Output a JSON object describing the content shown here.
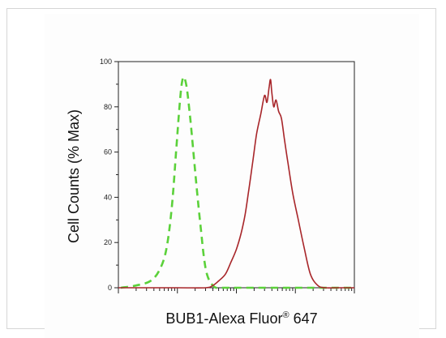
{
  "chart_data": {
    "type": "line",
    "title": "",
    "xlabel": "BUB1-Alexa Fluor",
    "xlabel_superscript": "®",
    "xlabel_suffix": " 647",
    "ylabel": "Cell Counts (% Max)",
    "x_scale": "log",
    "xlim": [
      1,
      10000
    ],
    "ylim": [
      0,
      100
    ],
    "y_ticks": [
      0,
      20,
      40,
      60,
      80,
      100
    ],
    "grid": false,
    "legend": "none",
    "series": [
      {
        "style": "dashed",
        "color": "#5bd13a",
        "x": [
          1.1,
          2,
          3.5,
          5,
          6.5,
          8,
          9.5,
          11,
          12,
          13,
          14.5,
          16.5,
          19,
          22,
          25,
          28,
          31,
          35,
          40,
          45,
          60,
          100,
          200,
          500,
          1000,
          2000,
          5000,
          10000
        ],
        "y": [
          0,
          1,
          3,
          8,
          17,
          35,
          60,
          82,
          91,
          93,
          88,
          75,
          58,
          40,
          26,
          14,
          7,
          3,
          1,
          0,
          0,
          0,
          0,
          0,
          0,
          0,
          0,
          0
        ]
      },
      {
        "style": "solid",
        "color": "#a8262a",
        "x": [
          1,
          10,
          30,
          40,
          50,
          65,
          80,
          100,
          120,
          140,
          160,
          190,
          220,
          260,
          300,
          330,
          360,
          380,
          400,
          430,
          470,
          520,
          580,
          650,
          750,
          900,
          1100,
          1400,
          1800,
          2400,
          3200,
          5000,
          10000
        ],
        "y": [
          0,
          0,
          0,
          1,
          3,
          6,
          11,
          17,
          24,
          32,
          42,
          56,
          68,
          77,
          85,
          82,
          89,
          92,
          86,
          80,
          83,
          78,
          75,
          66,
          55,
          42,
          31,
          18,
          6,
          1,
          0,
          0,
          0
        ]
      }
    ]
  }
}
